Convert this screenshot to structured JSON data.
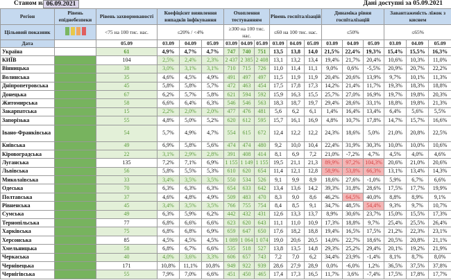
{
  "title": {
    "as_of_label": "Станом на",
    "as_of_date": "06.09.2021",
    "available": "Дані доступні за 05.09.2021"
  },
  "headers": {
    "region": "Регіон",
    "level": "Рівень епіднебезпеки",
    "incidence": "Рівень захворюваності",
    "coef": "Коефіцієнт виявлення випадків інфікування",
    "testing": "Охоплення тестуванням",
    "hosp": "Рівень госпіталізацій",
    "dyn": "Динаміка рівня госпіталізацій",
    "beds": "Завантаженість ліжок з киснем"
  },
  "targets": {
    "label": "Цільовий показник",
    "incidence": "<75 на 100 тис. нас.",
    "coef": "≤20% / <4%",
    "testing": "≥300 на 100 тис. нас.",
    "hosp": "≤60 на 100 тис. нас.",
    "dyn": "≤50%",
    "beds": "≤65%"
  },
  "light_colors": [
    "#7ab661",
    "#e8c84a",
    "#f0a860",
    "#e06060"
  ],
  "dates": {
    "label": "Дата",
    "inc": "05.09",
    "d1": "03.09",
    "d2": "04.09",
    "d3": "05.09"
  },
  "rows": [
    {
      "name": "Україна",
      "inc": "61",
      "io": 1,
      "coef": [
        "4,9%",
        "4,7%",
        "4,7%"
      ],
      "co": 0,
      "test": [
        "747",
        "740",
        "751"
      ],
      "hosp": [
        "13,5",
        "13,8",
        "14,0"
      ],
      "dyn": [
        "21,5%",
        "22,4%",
        "19,3%"
      ],
      "red": [],
      "beds": [
        "15,4%",
        "15,5%",
        "16,3%"
      ],
      "ua": 1
    },
    {
      "name": "КИЇВ",
      "inc": "104",
      "io": 0,
      "coef": [
        "2,5%",
        "2,4%",
        "2,3%"
      ],
      "co": 1,
      "test": [
        "2 437",
        "2 385",
        "2 408"
      ],
      "hosp": [
        "13,1",
        "13,2",
        "13,4"
      ],
      "dyn": [
        "19,4%",
        "21,7%",
        "20,4%"
      ],
      "red": [],
      "beds": [
        "10,6%",
        "10,3%",
        "11,0%"
      ]
    },
    {
      "name": "Вінницька",
      "inc": "38",
      "io": 1,
      "coef": [
        "3,0%",
        "3,1%",
        "3,1%"
      ],
      "co": 1,
      "test": [
        "710",
        "715",
        "726"
      ],
      "hosp": [
        "11,0",
        "11,4",
        "11,1"
      ],
      "dyn": [
        "9,0%",
        "0,6%",
        "-5,5%"
      ],
      "red": [],
      "beds": [
        "20,9%",
        "20,7%",
        "22,2%"
      ]
    },
    {
      "name": "Волинська",
      "inc": "35",
      "io": 1,
      "coef": [
        "4,6%",
        "4,5%",
        "4,9%"
      ],
      "co": 0,
      "test": [
        "491",
        "497",
        "497"
      ],
      "hosp": [
        "11,5",
        "11,9",
        "11,9"
      ],
      "dyn": [
        "20,4%",
        "20,6%",
        "13,9%"
      ],
      "red": [],
      "beds": [
        "9,7%",
        "10,1%",
        "11,3%"
      ]
    },
    {
      "name": "Дніпропетровська",
      "inc": "45",
      "io": 1,
      "coef": [
        "5,8%",
        "5,8%",
        "5,7%"
      ],
      "co": 0,
      "test": [
        "472",
        "463",
        "454"
      ],
      "hosp": [
        "17,5",
        "17,8",
        "17,3"
      ],
      "dyn": [
        "14,2%",
        "21,4%",
        "11,7%"
      ],
      "red": [],
      "beds": [
        "19,3%",
        "18,3%",
        "18,8%"
      ]
    },
    {
      "name": "Донецька",
      "inc": "67",
      "io": 1,
      "coef": [
        "6,2%",
        "5,7%",
        "5,8%"
      ],
      "co": 0,
      "test": [
        "621",
        "594",
        "592"
      ],
      "hosp": [
        "15,9",
        "16,3",
        "15,5"
      ],
      "dyn": [
        "25,7%",
        "27,0%",
        "16,9%"
      ],
      "red": [],
      "beds": [
        "19,7%",
        "19,8%",
        "20,3%"
      ]
    },
    {
      "name": "Житомирська",
      "inc": "58",
      "io": 1,
      "coef": [
        "6,6%",
        "6,4%",
        "6,3%"
      ],
      "co": 0,
      "test": [
        "546",
        "546",
        "563"
      ],
      "hosp": [
        "18,3",
        "18,7",
        "19,7"
      ],
      "dyn": [
        "29,4%",
        "28,6%",
        "33,1%"
      ],
      "red": [],
      "beds": [
        "18,8%",
        "19,8%",
        "21,3%"
      ]
    },
    {
      "name": "Закарпатська",
      "inc": "15",
      "io": 1,
      "coef": [
        "2,2%",
        "2,0%",
        "2,0%"
      ],
      "co": 1,
      "test": [
        "477",
        "476",
        "481"
      ],
      "hosp": [
        "5,6",
        "6,2",
        "6,1"
      ],
      "dyn": [
        "1,4%",
        "16,4%",
        "13,4%"
      ],
      "red": [],
      "beds": [
        "6,4%",
        "5,6%",
        "5,5%"
      ]
    },
    {
      "name": "Запорізька",
      "inc": "55",
      "io": 1,
      "coef": [
        "4,8%",
        "5,0%",
        "5,2%"
      ],
      "co": 0,
      "test": [
        "620",
        "612",
        "595"
      ],
      "hosp": [
        "15,7",
        "16,1",
        "16,9"
      ],
      "dyn": [
        "4,8%",
        "10,7%",
        "17,8%"
      ],
      "red": [],
      "beds": [
        "14,7%",
        "15,7%",
        "16,6%"
      ]
    },
    {
      "name": "Івано-Франківська",
      "inc": "54",
      "io": 1,
      "coef": [
        "5,7%",
        "4,9%",
        "4,7%"
      ],
      "co": 0,
      "test": [
        "554",
        "615",
        "672"
      ],
      "hosp": [
        "12,4",
        "12,2",
        "12,2"
      ],
      "dyn": [
        "24,3%",
        "18,6%",
        "5,0%"
      ],
      "red": [],
      "beds": [
        "21,0%",
        "20,8%",
        "22,5%"
      ],
      "tall": 1
    },
    {
      "name": "Київська",
      "inc": "49",
      "io": 1,
      "coef": [
        "6,9%",
        "5,8%",
        "5,6%"
      ],
      "co": 0,
      "test": [
        "474",
        "474",
        "480"
      ],
      "hosp": [
        "9,2",
        "10,0",
        "10,4"
      ],
      "dyn": [
        "22,4%",
        "31,9%",
        "30,3%"
      ],
      "red": [],
      "beds": [
        "10,0%",
        "10,0%",
        "10,6%"
      ]
    },
    {
      "name": "Кіровоградська",
      "inc": "22",
      "io": 1,
      "coef": [
        "3,1%",
        "2,9%",
        "2,8%"
      ],
      "co": 1,
      "test": [
        "391",
        "408",
        "414"
      ],
      "hosp": [
        "8,1",
        "6,9",
        "7,2"
      ],
      "dyn": [
        "21,0%",
        "-7,2%",
        "4,7%"
      ],
      "red": [],
      "beds": [
        "4,5%",
        "4,0%",
        "4,6%"
      ]
    },
    {
      "name": "Луганська",
      "inc": "135",
      "io": 0,
      "coef": [
        "7,2%",
        "7,1%",
        "6,9%"
      ],
      "co": 0,
      "test": [
        "1 155",
        "1 149",
        "1 155"
      ],
      "hosp": [
        "19,5",
        "21,1",
        "21,3"
      ],
      "dyn": [
        "89,9%",
        "97,2%",
        "104,3%"
      ],
      "red": [
        0,
        1,
        2
      ],
      "beds": [
        "20,6%",
        "21,0%",
        "20,6%"
      ]
    },
    {
      "name": "Львівська",
      "inc": "56",
      "io": 1,
      "coef": [
        "5,8%",
        "5,5%",
        "5,3%"
      ],
      "co": 0,
      "test": [
        "610",
        "620",
        "654"
      ],
      "hosp": [
        "11,4",
        "12,1",
        "12,8"
      ],
      "dyn": [
        "58,9%",
        "53,8%",
        "66,3%"
      ],
      "red": [
        0,
        1,
        2
      ],
      "beds": [
        "13,1%",
        "13,4%",
        "14,3%"
      ]
    },
    {
      "name": "Миколаївська",
      "inc": "33",
      "io": 1,
      "coef": [
        "3,4%",
        "3,5%",
        "3,5%"
      ],
      "co": 1,
      "test": [
        "550",
        "534",
        "526"
      ],
      "hosp": [
        "9,1",
        "9,9",
        "8,9"
      ],
      "dyn": [
        "18,6%",
        "27,6%",
        "-1,0%"
      ],
      "red": [],
      "beds": [
        "5,9%",
        "6,7%",
        "6,6%"
      ]
    },
    {
      "name": "Одеська",
      "inc": "70",
      "io": 1,
      "coef": [
        "6,3%",
        "6,3%",
        "6,3%"
      ],
      "co": 0,
      "test": [
        "654",
        "633",
        "642"
      ],
      "hosp": [
        "13,4",
        "13,6",
        "14,2"
      ],
      "dyn": [
        "39,3%",
        "31,8%",
        "28,6%"
      ],
      "red": [],
      "beds": [
        "17,5%",
        "17,7%",
        "19,9%"
      ]
    },
    {
      "name": "Полтавська",
      "inc": "37",
      "io": 1,
      "coef": [
        "4,6%",
        "4,8%",
        "4,9%"
      ],
      "co": 0,
      "test": [
        "509",
        "483",
        "470"
      ],
      "hosp": [
        "8,3",
        "9,0",
        "8,6"
      ],
      "dyn": [
        "46,2%",
        "64,5%",
        "40,0%"
      ],
      "red": [
        1
      ],
      "beds": [
        "8,8%",
        "8,9%",
        "9,1%"
      ]
    },
    {
      "name": "Рівненська",
      "inc": "45",
      "io": 1,
      "coef": [
        "3,4%",
        "3,5%",
        "3,5%"
      ],
      "co": 1,
      "test": [
        "766",
        "755",
        "754"
      ],
      "hosp": [
        "8,4",
        "8,5",
        "9,1"
      ],
      "dyn": [
        "34,7%",
        "48,5%",
        "54,4%"
      ],
      "red": [
        2
      ],
      "beds": [
        "9,3%",
        "9,7%",
        "10,7%"
      ]
    },
    {
      "name": "Сумська",
      "inc": "49",
      "io": 1,
      "coef": [
        "6,3%",
        "5,9%",
        "6,2%"
      ],
      "co": 0,
      "test": [
        "442",
        "432",
        "431"
      ],
      "hosp": [
        "12,6",
        "13,3",
        "13,7"
      ],
      "dyn": [
        "8,9%",
        "30,6%",
        "23,7%"
      ],
      "red": [],
      "beds": [
        "15,0%",
        "15,5%",
        "17,3%"
      ]
    },
    {
      "name": "Тернопільська",
      "inc": "77",
      "io": 0,
      "coef": [
        "6,8%",
        "6,6%",
        "6,6%"
      ],
      "co": 0,
      "test": [
        "623",
        "620",
        "643"
      ],
      "hosp": [
        "11,1",
        "11,0",
        "10,9"
      ],
      "dyn": [
        "17,3%",
        "18,8%",
        "9,7%"
      ],
      "red": [],
      "beds": [
        "25,4%",
        "25,5%",
        "26,4%"
      ]
    },
    {
      "name": "Харківська",
      "inc": "75",
      "io": 1,
      "coef": [
        "6,8%",
        "6,8%",
        "6,9%"
      ],
      "co": 0,
      "test": [
        "659",
        "647",
        "650"
      ],
      "hosp": [
        "17,6",
        "18,2",
        "18,8"
      ],
      "dyn": [
        "19,4%",
        "16,5%",
        "17,5%"
      ],
      "red": [],
      "beds": [
        "21,2%",
        "22,3%",
        "23,1%"
      ]
    },
    {
      "name": "Херсонська",
      "inc": "85",
      "io": 0,
      "coef": [
        "4,5%",
        "4,5%",
        "4,5%"
      ],
      "co": 0,
      "test": [
        "1 089",
        "1 064",
        "1 074"
      ],
      "hosp": [
        "19,0",
        "20,6",
        "20,5"
      ],
      "dyn": [
        "14,0%",
        "22,7%",
        "18,6%"
      ],
      "red": [],
      "beds": [
        "20,5%",
        "20,8%",
        "21,1%"
      ]
    },
    {
      "name": "Хмельницька",
      "inc": "58",
      "io": 1,
      "coef": [
        "6,8%",
        "6,7%",
        "6,6%"
      ],
      "co": 0,
      "test": [
        "535",
        "518",
        "527"
      ],
      "hosp": [
        "13,8",
        "13,5",
        "14,8"
      ],
      "dyn": [
        "29,3%",
        "25,2%",
        "29,4%"
      ],
      "red": [],
      "beds": [
        "20,1%",
        "19,2%",
        "21,9%"
      ]
    },
    {
      "name": "Черкаська",
      "inc": "40",
      "io": 1,
      "coef": [
        "4,0%",
        "3,6%",
        "3,3%"
      ],
      "co": 1,
      "test": [
        "606",
        "657",
        "743"
      ],
      "hosp": [
        "7,2",
        "7,0",
        "6,2"
      ],
      "dyn": [
        "34,4%",
        "23,9%",
        "-1,4%"
      ],
      "red": [],
      "beds": [
        "8,1%",
        "8,7%",
        "8,0%"
      ]
    },
    {
      "name": "Чернівецька",
      "inc": "171",
      "io": 0,
      "coef": [
        "10,8%",
        "11,1%",
        "10,8%"
      ],
      "co": 0,
      "test": [
        "949",
        "922",
        "939"
      ],
      "hosp": [
        "28,6",
        "27,9",
        "28,9"
      ],
      "dyn": [
        "0,0%",
        "-6,0%",
        "1,2%"
      ],
      "red": [],
      "beds": [
        "36,5%",
        "37,5%",
        "37,8%"
      ]
    },
    {
      "name": "Чернігівська",
      "inc": "55",
      "io": 1,
      "coef": [
        "7,9%",
        "7,0%",
        "6,6%"
      ],
      "co": 0,
      "test": [
        "451",
        "450",
        "465"
      ],
      "hosp": [
        "17,4",
        "17,3",
        "16,5"
      ],
      "dyn": [
        "11,7%",
        "3,6%",
        "-7,4%"
      ],
      "red": [],
      "beds": [
        "17,5%",
        "17,8%",
        "17,7%"
      ]
    }
  ]
}
